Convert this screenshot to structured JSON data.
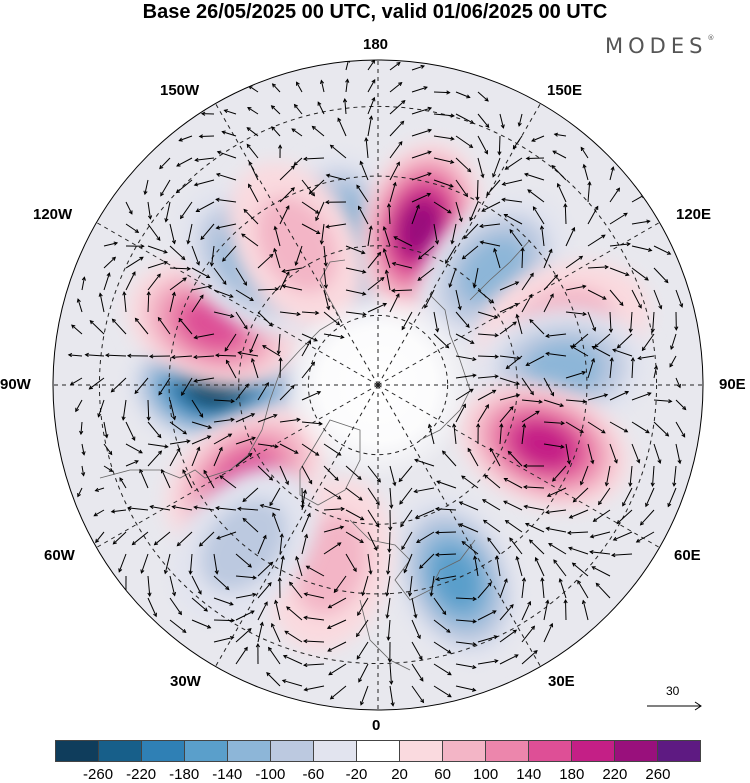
{
  "title": "Base 26/05/2025 00 UTC, valid 01/06/2025 00 UTC",
  "brand": "MODES",
  "brand_mark": "®",
  "longitude_labels": {
    "top": "180",
    "top_right": "150E",
    "top_left": "150W",
    "upper_left": "120W",
    "upper_right": "120E",
    "left": "90W",
    "right": "90E",
    "lower_left": "60W",
    "lower_right": "60E",
    "bottom_left": "30W",
    "bottom_right": "30E",
    "bottom": "0"
  },
  "reference_vector": "30",
  "colorbar": {
    "colors": [
      "#0f3d5c",
      "#175f8a",
      "#2f80b5",
      "#5a9fcb",
      "#8db6d8",
      "#bcc9e0",
      "#e2e4ef",
      "#ffffff",
      "#fadadf",
      "#f3b5c6",
      "#ec86ac",
      "#de4f96",
      "#c41f86",
      "#99107c",
      "#5e1a82"
    ],
    "tick_labels": [
      "-260",
      "-220",
      "-180",
      "-140",
      "-100",
      "-60",
      "-20",
      "20",
      "60",
      "100",
      "140",
      "180",
      "220",
      "260"
    ]
  },
  "anomaly_centers": [
    {
      "lon": -90,
      "lat": 55,
      "value": -265
    },
    {
      "lon": -110,
      "lat": 52,
      "value": 150
    },
    {
      "lon": -55,
      "lat": 55,
      "value": 170
    },
    {
      "lon": -168,
      "lat": 58,
      "value": -150
    },
    {
      "lon": 165,
      "lat": 55,
      "value": 240
    },
    {
      "lon": 135,
      "lat": 55,
      "value": -120
    },
    {
      "lon": 108,
      "lat": 48,
      "value": 90
    },
    {
      "lon": 95,
      "lat": 50,
      "value": -130
    },
    {
      "lon": 70,
      "lat": 52,
      "value": 200
    },
    {
      "lon": 22,
      "lat": 45,
      "value": -160
    },
    {
      "lon": -15,
      "lat": 50,
      "value": 70
    },
    {
      "lon": -135,
      "lat": 52,
      "value": -120
    },
    {
      "lon": -150,
      "lat": 55,
      "value": 80
    },
    {
      "lon": -40,
      "lat": 45,
      "value": -90
    }
  ]
}
